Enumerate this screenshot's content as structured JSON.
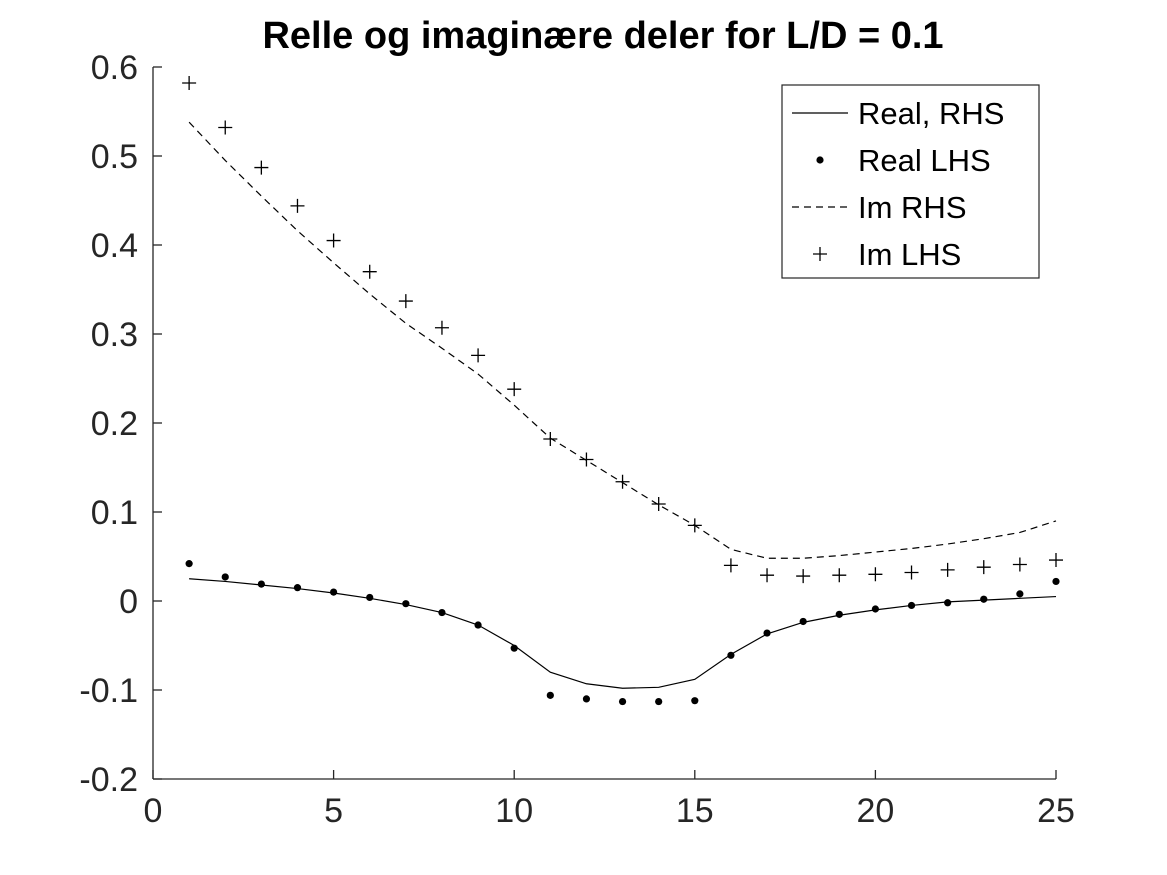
{
  "chart_data": {
    "type": "line",
    "title": "Relle og imaginære deler for L/D = 0.1",
    "xlabel": "",
    "ylabel": "",
    "xlim": [
      0,
      25
    ],
    "ylim": [
      -0.2,
      0.6
    ],
    "x_ticks": [
      "0",
      "5",
      "10",
      "15",
      "20",
      "25"
    ],
    "y_ticks": [
      "-0.2",
      "-0.1",
      "0",
      "0.1",
      "0.2",
      "0.3",
      "0.4",
      "0.5",
      "0.6"
    ],
    "grid": false,
    "legend_position": "top-right",
    "x": [
      1,
      2,
      3,
      4,
      5,
      6,
      7,
      8,
      9,
      10,
      11,
      12,
      13,
      14,
      15,
      16,
      17,
      18,
      19,
      20,
      21,
      22,
      23,
      24,
      25
    ],
    "series": [
      {
        "name": "Real, RHS",
        "style": "solid-line",
        "color": "#000000",
        "values": [
          0.025,
          0.022,
          0.018,
          0.014,
          0.009,
          0.003,
          -0.004,
          -0.013,
          -0.027,
          -0.05,
          -0.08,
          -0.093,
          -0.098,
          -0.097,
          -0.088,
          -0.06,
          -0.037,
          -0.024,
          -0.016,
          -0.01,
          -0.005,
          -0.001,
          0.001,
          0.003,
          0.005
        ]
      },
      {
        "name": "Real LHS",
        "style": "dot-marker",
        "color": "#000000",
        "values": [
          0.042,
          0.027,
          0.019,
          0.015,
          0.01,
          0.004,
          -0.003,
          -0.013,
          -0.027,
          -0.053,
          -0.106,
          -0.11,
          -0.113,
          -0.113,
          -0.112,
          -0.061,
          -0.036,
          -0.023,
          -0.015,
          -0.009,
          -0.005,
          -0.002,
          0.002,
          0.008,
          0.022
        ]
      },
      {
        "name": "Im RHS",
        "style": "dashed-line",
        "color": "#000000",
        "values": [
          0.538,
          0.495,
          0.455,
          0.416,
          0.38,
          0.345,
          0.312,
          0.284,
          0.255,
          0.22,
          0.183,
          0.158,
          0.133,
          0.108,
          0.085,
          0.058,
          0.048,
          0.048,
          0.051,
          0.055,
          0.059,
          0.064,
          0.07,
          0.077,
          0.09
        ]
      },
      {
        "name": "Im LHS",
        "style": "plus-marker",
        "color": "#000000",
        "values": [
          0.582,
          0.532,
          0.487,
          0.444,
          0.405,
          0.37,
          0.337,
          0.307,
          0.276,
          0.238,
          0.182,
          0.159,
          0.134,
          0.109,
          0.085,
          0.04,
          0.029,
          0.028,
          0.029,
          0.03,
          0.032,
          0.035,
          0.038,
          0.041,
          0.046
        ]
      }
    ]
  }
}
